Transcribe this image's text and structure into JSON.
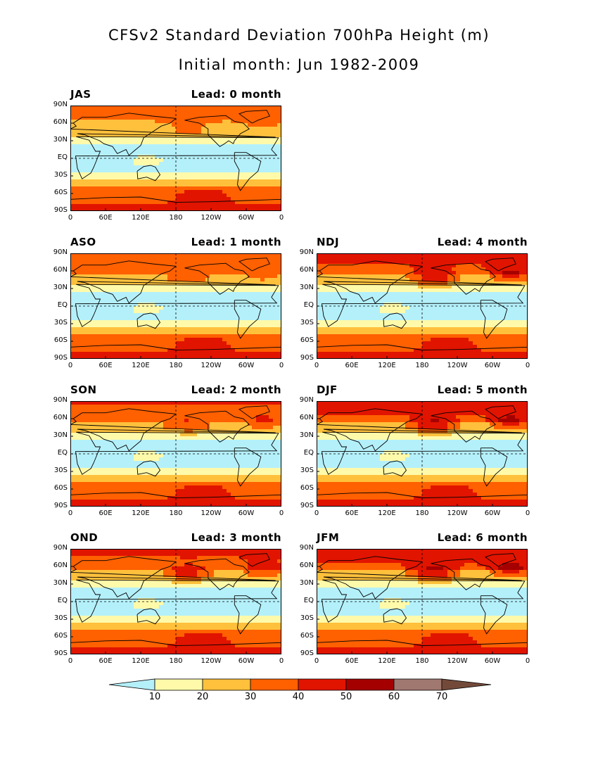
{
  "title": "CFSv2 Standard Deviation 700hPa Height (m)",
  "subtitle": "Initial month: Jun 1982-2009",
  "y_ticks": [
    "90N",
    "60N",
    "30N",
    "EQ",
    "30S",
    "60S",
    "90S"
  ],
  "x_ticks": [
    "0",
    "60E",
    "120E",
    "180",
    "120W",
    "60W",
    "0"
  ],
  "panels": [
    {
      "season": "JAS",
      "lead": "Lead: 0 month",
      "intensity": 0
    },
    {
      "season": "ASO",
      "lead": "Lead: 1 month",
      "intensity": 0.3
    },
    {
      "season": "SON",
      "lead": "Lead: 2 month",
      "intensity": 0.5
    },
    {
      "season": "OND",
      "lead": "Lead: 3 month",
      "intensity": 0.8
    },
    {
      "season": "NDJ",
      "lead": "Lead: 4 month",
      "intensity": 1.0
    },
    {
      "season": "DJF",
      "lead": "Lead: 5 month",
      "intensity": 1.1
    },
    {
      "season": "JFM",
      "lead": "Lead: 6 month",
      "intensity": 1.2
    }
  ],
  "colorbar": {
    "levels": [
      "10",
      "20",
      "30",
      "40",
      "50",
      "60",
      "70"
    ],
    "colors": [
      "#b4f0fa",
      "#fffaaa",
      "#ffc03c",
      "#ff6000",
      "#e11400",
      "#a50000",
      "#a07870",
      "#734a3a"
    ]
  }
}
